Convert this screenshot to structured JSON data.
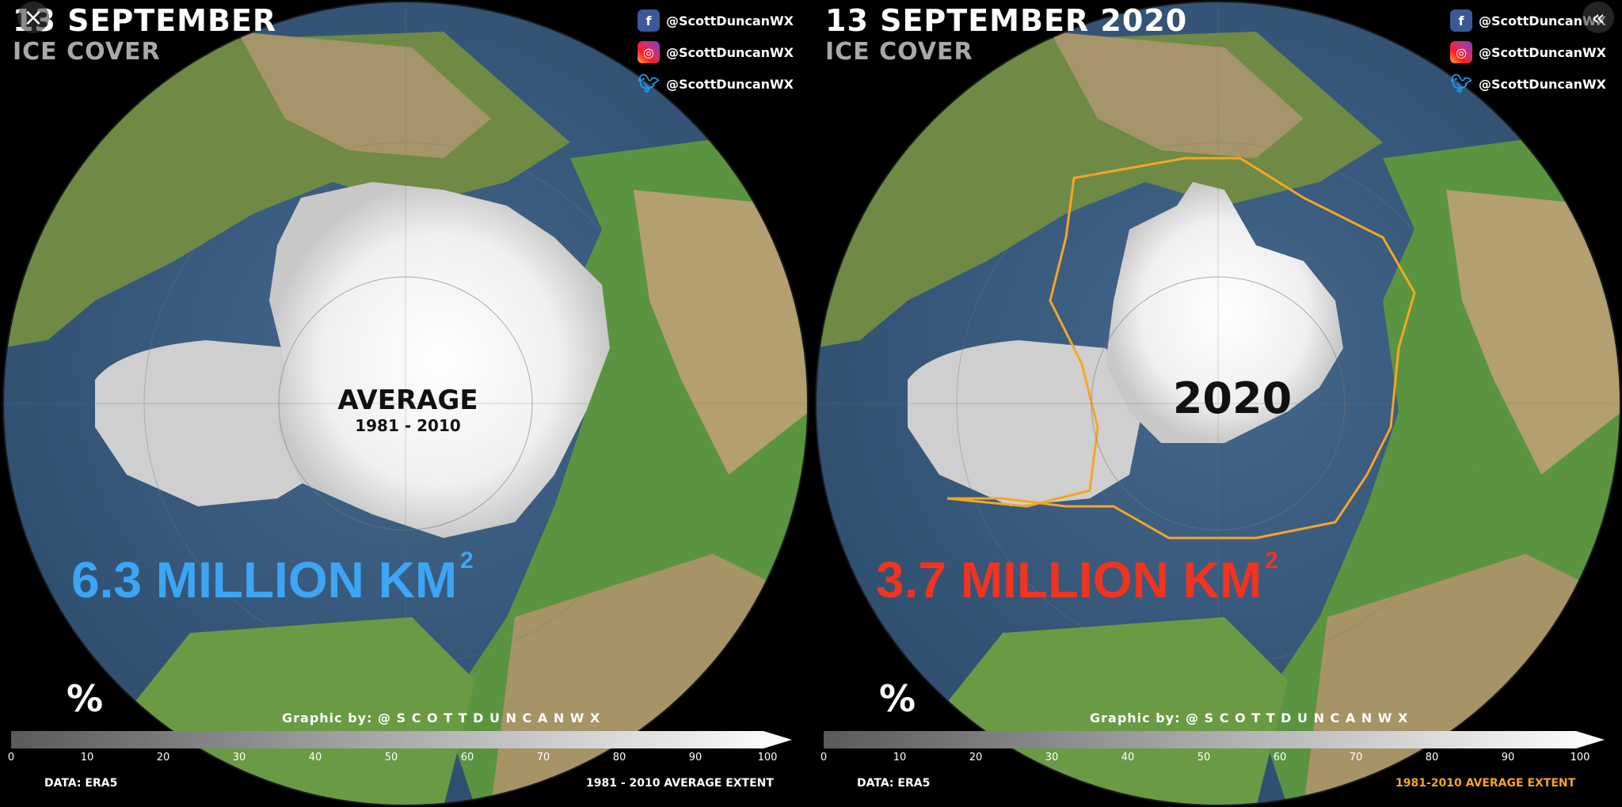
{
  "left": {
    "date_title": "13 SEPTEMBER",
    "sub_title": "ICE COVER",
    "center_label_line1": "AVERAGE",
    "center_label_line2": "1981 - 2010",
    "extent_value": "6.3 MILLION KM",
    "extent_unit_sup": "2",
    "extent_color": "#3da5f4",
    "footer_right": "1981 - 2010 AVERAGE EXTENT",
    "footer_right_color": "#ffffff"
  },
  "right": {
    "date_title": "13 SEPTEMBER 2020",
    "sub_title": "ICE COVER",
    "center_label": "2020",
    "extent_value": "3.7 MILLION KM",
    "extent_unit_sup": "2",
    "extent_color": "#f0341f",
    "footer_right": "1981-2010 AVERAGE EXTENT",
    "footer_right_color": "#f5a623",
    "outline_color": "#f5a623"
  },
  "socials": [
    {
      "icon": "facebook-icon",
      "handle": "@ScottDuncanWX"
    },
    {
      "icon": "instagram-icon",
      "handle": "@ScottDuncanWX"
    },
    {
      "icon": "twitter-icon",
      "handle": "@ScottDuncanWX"
    }
  ],
  "credit": "Graphic by: @ S C O T T D U N C A N W X",
  "percent_label": "%",
  "colorbar_ticks": [
    "0",
    "10",
    "20",
    "30",
    "40",
    "50",
    "60",
    "70",
    "80",
    "90",
    "100"
  ],
  "data_source": "DATA: ERA5",
  "colors": {
    "ocean": "#3d5f82",
    "land_low": "#4f8f3a",
    "land_high": "#a89a6a",
    "ice": "#f4f4f4"
  },
  "controls": {
    "close_icon": "close-icon",
    "collapse_icon": "chevron-double-left-icon"
  }
}
